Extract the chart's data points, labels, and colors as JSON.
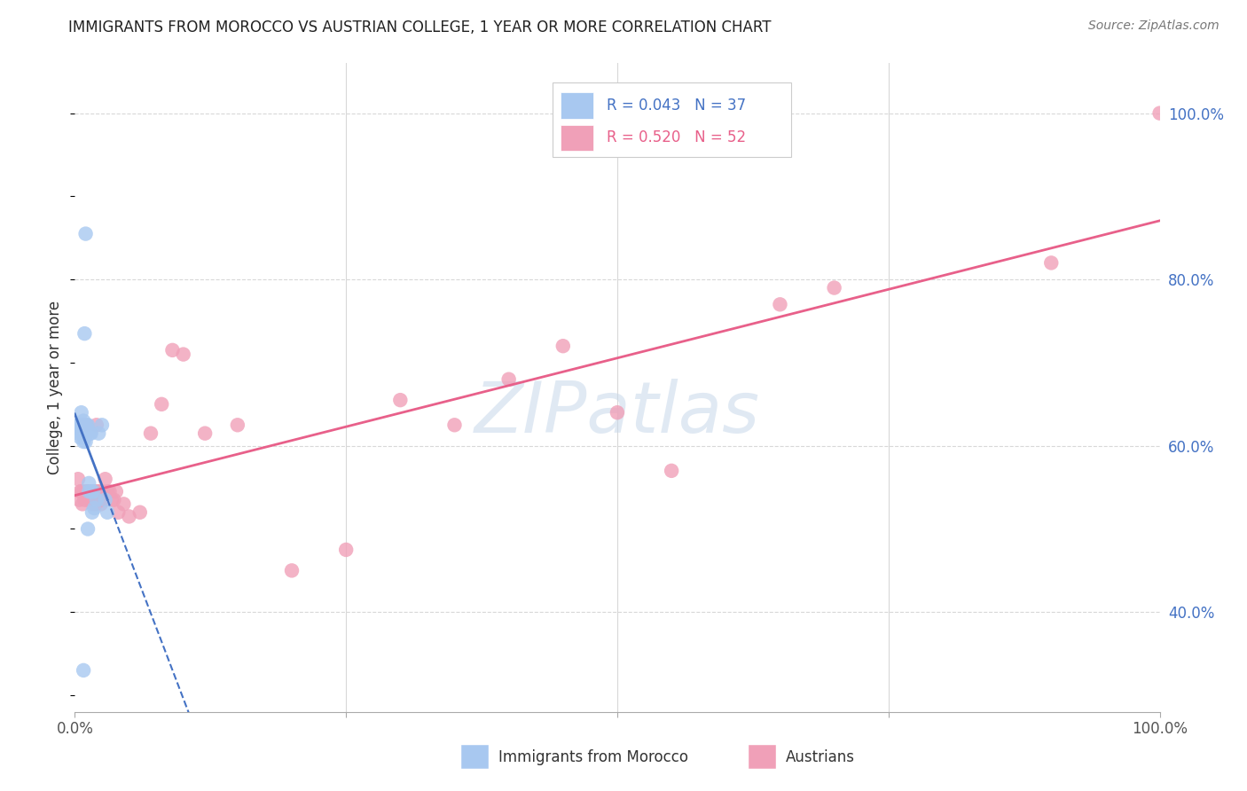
{
  "title": "IMMIGRANTS FROM MOROCCO VS AUSTRIAN COLLEGE, 1 YEAR OR MORE CORRELATION CHART",
  "source": "Source: ZipAtlas.com",
  "ylabel": "College, 1 year or more",
  "morocco_color": "#a8c8f0",
  "austrian_color": "#f0a0b8",
  "morocco_line_color": "#4472c4",
  "austrian_line_color": "#e8608a",
  "legend_R_morocco": "R = 0.043",
  "legend_N_morocco": "N = 37",
  "legend_R_austrian": "R = 0.520",
  "legend_N_austrian": "N = 52",
  "watermark": "ZIPatlas",
  "background_color": "#ffffff",
  "grid_color": "#d8d8d8",
  "morocco_x": [
    0.003,
    0.003,
    0.004,
    0.005,
    0.005,
    0.006,
    0.006,
    0.007,
    0.007,
    0.008,
    0.008,
    0.008,
    0.009,
    0.009,
    0.01,
    0.01,
    0.011,
    0.011,
    0.012,
    0.012,
    0.013,
    0.013,
    0.014,
    0.015,
    0.015,
    0.016,
    0.017,
    0.018,
    0.02,
    0.022,
    0.025,
    0.028,
    0.03,
    0.01,
    0.008,
    0.009,
    0.012
  ],
  "morocco_y": [
    0.625,
    0.615,
    0.625,
    0.62,
    0.61,
    0.64,
    0.62,
    0.625,
    0.615,
    0.63,
    0.62,
    0.605,
    0.625,
    0.61,
    0.62,
    0.605,
    0.625,
    0.615,
    0.625,
    0.62,
    0.545,
    0.555,
    0.615,
    0.545,
    0.615,
    0.52,
    0.545,
    0.525,
    0.535,
    0.615,
    0.625,
    0.535,
    0.52,
    0.855,
    0.33,
    0.735,
    0.5
  ],
  "austrian_x": [
    0.003,
    0.004,
    0.005,
    0.006,
    0.007,
    0.008,
    0.009,
    0.01,
    0.011,
    0.012,
    0.013,
    0.014,
    0.015,
    0.016,
    0.017,
    0.018,
    0.019,
    0.02,
    0.021,
    0.022,
    0.023,
    0.024,
    0.025,
    0.026,
    0.028,
    0.03,
    0.032,
    0.034,
    0.036,
    0.038,
    0.04,
    0.045,
    0.05,
    0.06,
    0.07,
    0.08,
    0.09,
    0.1,
    0.12,
    0.15,
    0.2,
    0.25,
    0.3,
    0.35,
    0.4,
    0.45,
    0.5,
    0.55,
    0.65,
    0.7,
    0.9,
    1.0
  ],
  "austrian_y": [
    0.56,
    0.535,
    0.545,
    0.545,
    0.53,
    0.545,
    0.535,
    0.625,
    0.545,
    0.545,
    0.535,
    0.545,
    0.545,
    0.535,
    0.53,
    0.545,
    0.53,
    0.625,
    0.545,
    0.545,
    0.535,
    0.53,
    0.545,
    0.535,
    0.56,
    0.545,
    0.545,
    0.535,
    0.535,
    0.545,
    0.52,
    0.53,
    0.515,
    0.52,
    0.615,
    0.65,
    0.715,
    0.71,
    0.615,
    0.625,
    0.45,
    0.475,
    0.655,
    0.625,
    0.68,
    0.72,
    0.64,
    0.57,
    0.77,
    0.79,
    0.82,
    1.0
  ],
  "xlim": [
    0.0,
    1.0
  ],
  "ylim": [
    0.28,
    1.06
  ],
  "yticks": [
    0.4,
    0.6,
    0.8,
    1.0
  ],
  "ytick_labels": [
    "40.0%",
    "60.0%",
    "80.0%",
    "100.0%"
  ],
  "xticks": [
    0.0,
    0.25,
    0.5,
    0.75,
    1.0
  ],
  "xtick_labels": [
    "0.0%",
    "",
    "",
    "",
    "100.0%"
  ]
}
